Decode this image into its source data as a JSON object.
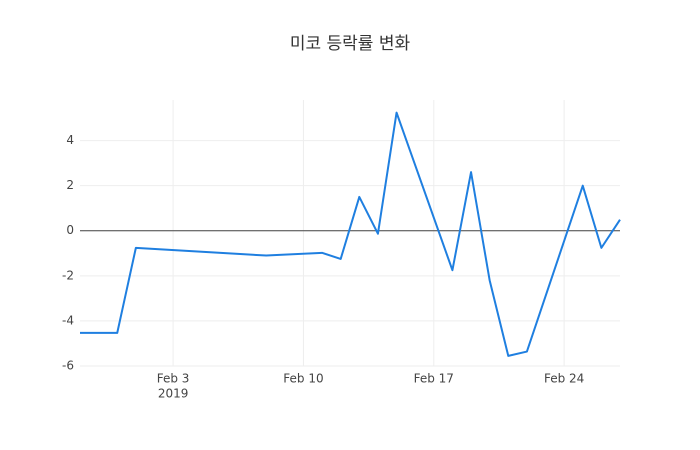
{
  "chart_data": {
    "type": "line",
    "title": "미코 등락률 변화",
    "x": [
      "2019-01-29",
      "2019-01-31",
      "2019-02-01",
      "2019-02-08",
      "2019-02-11",
      "2019-02-12",
      "2019-02-13",
      "2019-02-14",
      "2019-02-15",
      "2019-02-18",
      "2019-02-19",
      "2019-02-20",
      "2019-02-21",
      "2019-02-22",
      "2019-02-25",
      "2019-02-26",
      "2019-02-27"
    ],
    "values": [
      -4.53,
      -4.53,
      -0.76,
      -1.1,
      -0.98,
      -1.25,
      1.5,
      -0.13,
      5.24,
      -1.75,
      2.6,
      -2.2,
      -5.55,
      -5.36,
      2.0,
      -0.76,
      0.49
    ],
    "color": "#1f7fe0",
    "xlim": [
      "2019-01-29",
      "2019-02-27"
    ],
    "xticks": [
      {
        "value": "2019-02-03",
        "label": "Feb 3"
      },
      {
        "value": "2019-02-10",
        "label": "Feb 10"
      },
      {
        "value": "2019-02-17",
        "label": "Feb 17"
      },
      {
        "value": "2019-02-24",
        "label": "Feb 24"
      }
    ],
    "xtick_year": "2019",
    "ylim": [
      -6,
      5.8
    ],
    "yticks": [
      -6,
      -4,
      -2,
      0,
      2,
      4
    ],
    "grid": true,
    "zero_line": true
  }
}
